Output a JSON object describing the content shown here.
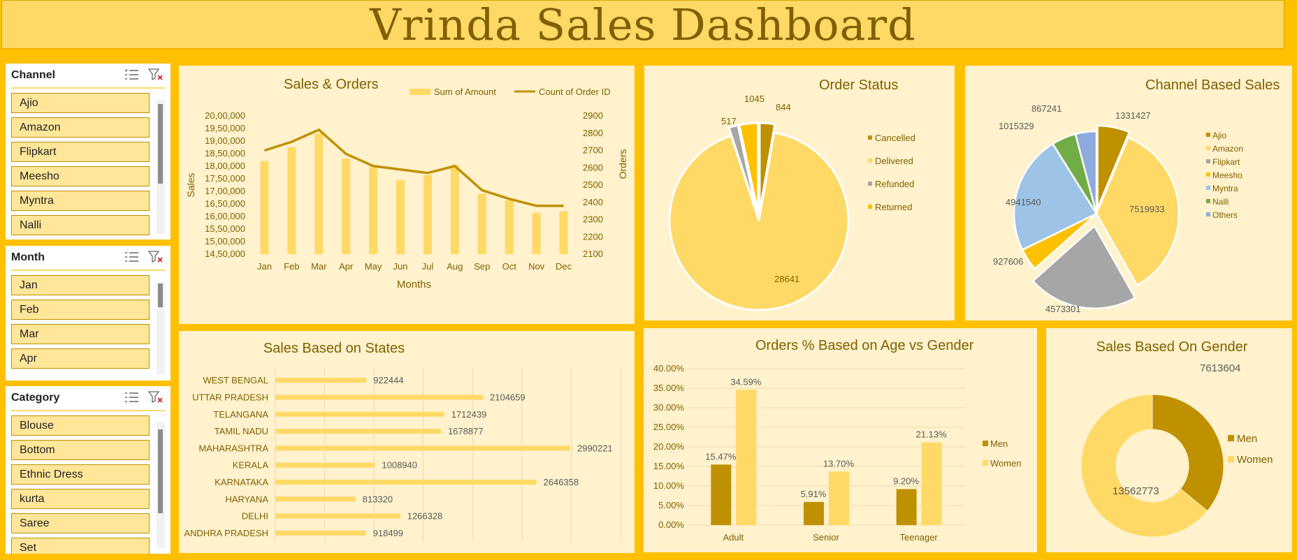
{
  "title": "Vrinda Sales Dashboard",
  "slicers": {
    "channel": {
      "title": "Channel",
      "items": [
        "Ajio",
        "Amazon",
        "Flipkart",
        "Meesho",
        "Myntra",
        "Nalli"
      ]
    },
    "month": {
      "title": "Month",
      "items": [
        "Jan",
        "Feb",
        "Mar",
        "Apr"
      ]
    },
    "category": {
      "title": "Category",
      "items": [
        "Blouse",
        "Bottom",
        "Ethnic Dress",
        "kurta",
        "Saree",
        "Set"
      ]
    }
  },
  "icons": {
    "multiselect": "multi-select-icon",
    "clear_filter": "clear-filter-icon"
  },
  "colors": {
    "accent": "#ffc000",
    "title": "#7f6000",
    "bar_light": "#ffd966",
    "bar_dark": "#bf9000",
    "panel": "#fff2cc"
  },
  "chart_data": [
    {
      "id": "sales_orders",
      "type": "bar",
      "title": "Sales & Orders",
      "xlabel": "Months",
      "ylabel": "Sales",
      "y2label": "Orders",
      "categories": [
        "Jan",
        "Feb",
        "Mar",
        "Apr",
        "May",
        "Jun",
        "Jul",
        "Aug",
        "Sep",
        "Oct",
        "Nov",
        "Dec"
      ],
      "series": [
        {
          "name": "Sum of Amount",
          "type": "bar",
          "axis": "left",
          "values": [
            1820000,
            1875000,
            1930000,
            1830000,
            1800000,
            1745000,
            1765000,
            1805000,
            1690000,
            1665000,
            1615000,
            1620000
          ]
        },
        {
          "name": "Count of Order ID",
          "type": "line",
          "axis": "right",
          "values": [
            2700,
            2750,
            2820,
            2680,
            2610,
            2590,
            2570,
            2610,
            2470,
            2420,
            2380,
            2380
          ]
        }
      ],
      "ylim": [
        1450000,
        2000000
      ],
      "yticks": [
        "20,00,000",
        "19,50,000",
        "19,00,000",
        "18,50,000",
        "18,00,000",
        "17,50,000",
        "17,00,000",
        "16,50,000",
        "16,00,000",
        "15,50,000",
        "15,00,000",
        "14,50,000"
      ],
      "y2lim": [
        2100,
        2900
      ],
      "y2ticks": [
        "2900",
        "2800",
        "2700",
        "2600",
        "2500",
        "2400",
        "2300",
        "2200",
        "2100"
      ],
      "legend": "top-right"
    },
    {
      "id": "order_status",
      "type": "pie",
      "title": "Order Status",
      "labels": [
        "Cancelled",
        "Delivered",
        "Refunded",
        "Returned"
      ],
      "values": [
        844,
        28641,
        517,
        1045
      ],
      "legend": "right"
    },
    {
      "id": "channel_sales",
      "type": "pie",
      "title": "Channel Based Sales",
      "labels": [
        "Ajio",
        "Amazon",
        "Flipkart",
        "Meesho",
        "Myntra",
        "Nalli",
        "Others"
      ],
      "values": [
        1331427,
        7519933,
        4573301,
        927606,
        4941540,
        1015329,
        867241
      ],
      "legend": "right"
    },
    {
      "id": "sales_states",
      "type": "bar",
      "orientation": "horizontal",
      "title": "Sales Based on States",
      "categories": [
        "WEST BENGAL",
        "UTTAR PRADESH",
        "TELANGANA",
        "TAMIL NADU",
        "MAHARASHTRA",
        "KERALA",
        "KARNATAKA",
        "HARYANA",
        "DELHI",
        "ANDHRA PRADESH"
      ],
      "values": [
        922444,
        2104659,
        1712439,
        1678877,
        2990221,
        1008940,
        2646358,
        813320,
        1266328,
        918499
      ],
      "xlim": [
        0,
        3500000
      ]
    },
    {
      "id": "age_gender",
      "type": "bar",
      "title": "Orders % Based on Age vs Gender",
      "categories": [
        "Adult",
        "Senior",
        "Teenager"
      ],
      "series": [
        {
          "name": "Men",
          "values": [
            15.47,
            5.91,
            9.2
          ],
          "labels": [
            "15.47%",
            "5.91%",
            "9.20%"
          ]
        },
        {
          "name": "Women",
          "values": [
            34.59,
            13.7,
            21.13
          ],
          "labels": [
            "34.59%",
            "13.70%",
            "21.13%"
          ]
        }
      ],
      "ylim": [
        0,
        40
      ],
      "yticks": [
        "40.00%",
        "35.00%",
        "30.00%",
        "25.00%",
        "20.00%",
        "15.00%",
        "10.00%",
        "5.00%",
        "0.00%"
      ],
      "legend": "right"
    },
    {
      "id": "sales_gender",
      "type": "pie",
      "style": "donut",
      "title": "Sales Based On Gender",
      "labels": [
        "Men",
        "Women"
      ],
      "values": [
        7613604,
        13562773
      ],
      "legend": "right"
    }
  ]
}
